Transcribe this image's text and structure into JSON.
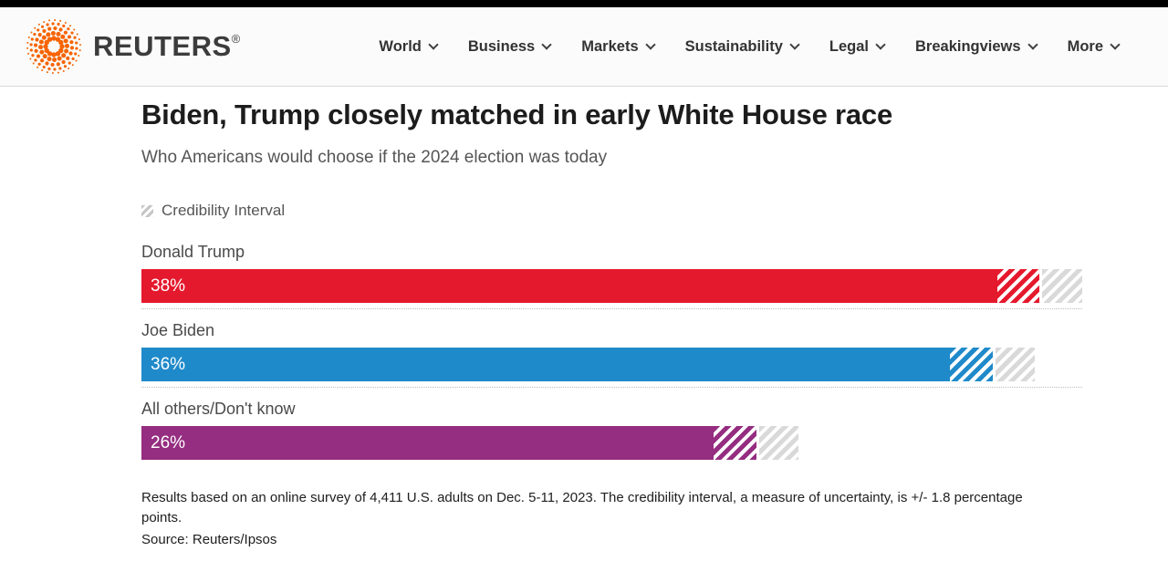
{
  "brand": {
    "logo_text": "REUTERS",
    "registered_mark": "®",
    "logo_color": "#f76400",
    "text_color": "#3c3c3c"
  },
  "nav": {
    "items": [
      {
        "label": "World"
      },
      {
        "label": "Business"
      },
      {
        "label": "Markets"
      },
      {
        "label": "Sustainability"
      },
      {
        "label": "Legal"
      },
      {
        "label": "Breakingviews"
      },
      {
        "label": "More"
      }
    ]
  },
  "chart_data": {
    "type": "bar",
    "orientation": "horizontal",
    "title": "Biden, Trump closely matched in early White House race",
    "subtitle": "Who Americans would choose if the 2024 election was today",
    "legend": {
      "label": "Credibility Interval",
      "swatch": "diagonal-hatch"
    },
    "categories": [
      "Donald Trump",
      "Joe Biden",
      "All others/Don't know"
    ],
    "values": [
      38,
      36,
      26
    ],
    "value_labels": [
      "38%",
      "36%",
      "26%"
    ],
    "bar_colors": [
      "#e5192d",
      "#1f8aca",
      "#952d80"
    ],
    "credibility_interval_pts": 1.8,
    "xlim": [
      0,
      39.8
    ],
    "gridlines": "dotted row separators spanning axis width",
    "ci_hatch_gray": "#d9d9d9",
    "notes": "Results based on an online survey of 4,411 U.S. adults on Dec. 5-11, 2023. The credibility interval, a measure of uncertainty, is +/- 1.8 percentage points.",
    "source": "Source: Reuters/Ipsos"
  }
}
